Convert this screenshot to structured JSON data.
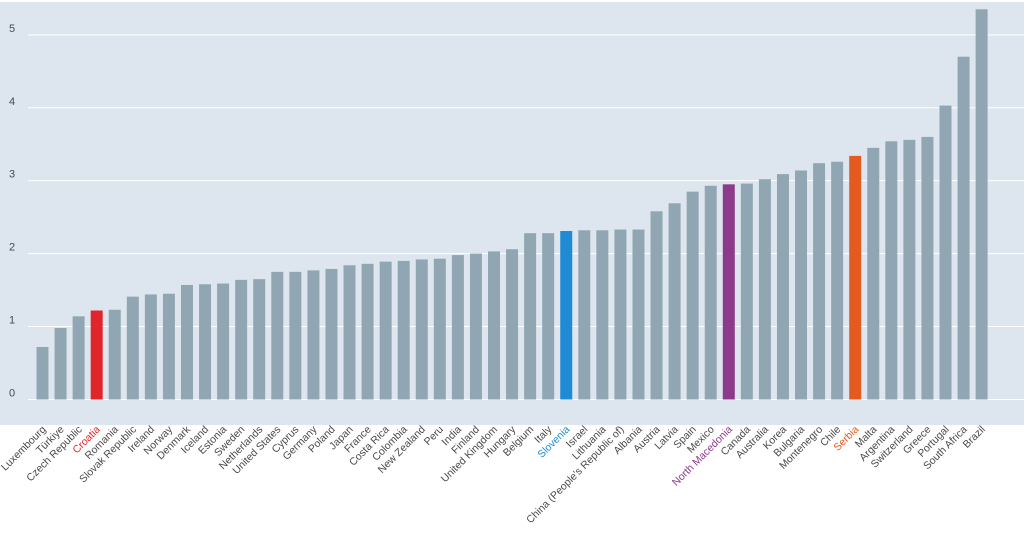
{
  "chart_data": {
    "type": "bar",
    "title": "",
    "xlabel": "",
    "ylabel": "",
    "ylim": [
      -0.35,
      5.45
    ],
    "yticks": [
      0,
      1,
      2,
      3,
      4,
      5
    ],
    "grid": "horizontal",
    "colors": {
      "plot_background": "#dde6ee",
      "gridline": "#ffffff",
      "default_bar": "#91a6b3",
      "default_label": "#4a4a4a"
    },
    "categories": [
      "Luxembourg",
      "Türkiye",
      "Czech Republic",
      "Croatia",
      "Romania",
      "Slovak Republic",
      "Ireland",
      "Norway",
      "Denmark",
      "Iceland",
      "Estonia",
      "Sweden",
      "Netherlands",
      "United States",
      "Cyprus",
      "Germany",
      "Poland",
      "Japan",
      "France",
      "Costa Rica",
      "Colombia",
      "New Zealand",
      "Peru",
      "India",
      "Finland",
      "United Kingdom",
      "Hungary",
      "Belgium",
      "Italy",
      "Slovenia",
      "Israel",
      "Lithuania",
      "China (People's Republic of)",
      "Albania",
      "Austria",
      "Latvia",
      "Spain",
      "Mexico",
      "North Macedonia",
      "Canada",
      "Australia",
      "Korea",
      "Bulgaria",
      "Montenegro",
      "Chile",
      "Serbia",
      "Malta",
      "Argentina",
      "Switzerland",
      "Greece",
      "Portugal",
      "South Africa",
      "Brazil"
    ],
    "values": [
      0.72,
      0.98,
      1.14,
      1.22,
      1.23,
      1.41,
      1.44,
      1.45,
      1.57,
      1.58,
      1.59,
      1.64,
      1.65,
      1.75,
      1.75,
      1.77,
      1.79,
      1.84,
      1.86,
      1.89,
      1.9,
      1.92,
      1.93,
      1.98,
      2.0,
      2.03,
      2.06,
      2.28,
      2.28,
      2.31,
      2.32,
      2.32,
      2.33,
      2.33,
      2.58,
      2.69,
      2.85,
      2.93,
      2.95,
      2.96,
      3.02,
      3.09,
      3.14,
      3.24,
      3.26,
      3.34,
      3.45,
      3.54,
      3.56,
      3.6,
      4.03,
      4.7,
      5.35
    ],
    "highlights": {
      "Croatia": "#e0262c",
      "Slovenia": "#1f8ad6",
      "North Macedonia": "#8e3a8a",
      "Serbia": "#e55a1f"
    }
  }
}
